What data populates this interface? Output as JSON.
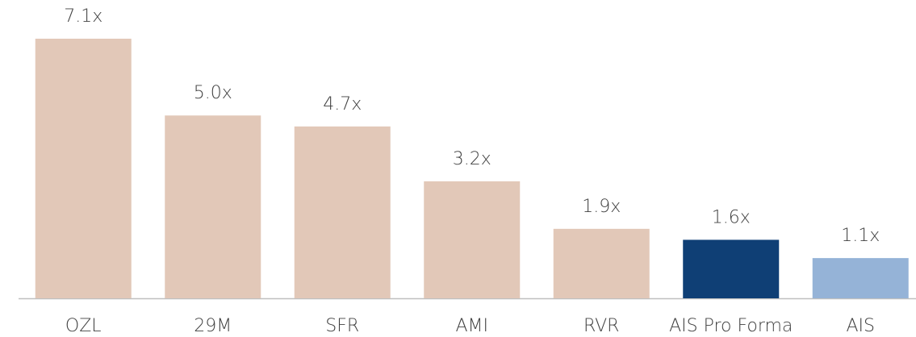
{
  "chart_data": {
    "type": "bar",
    "categories": [
      "OZL",
      "29M",
      "SFR",
      "AMI",
      "RVR",
      "AIS Pro Forma",
      "AIS"
    ],
    "values": [
      7.1,
      5.0,
      4.7,
      3.2,
      1.9,
      1.6,
      1.1
    ],
    "value_labels": [
      "7.1x",
      "5.0x",
      "4.7x",
      "3.2x",
      "1.9x",
      "1.6x",
      "1.1x"
    ],
    "colors": [
      "#e2c8b8",
      "#e2c8b8",
      "#e2c8b8",
      "#e2c8b8",
      "#e2c8b8",
      "#0f3f75",
      "#95b3d7"
    ]
  }
}
